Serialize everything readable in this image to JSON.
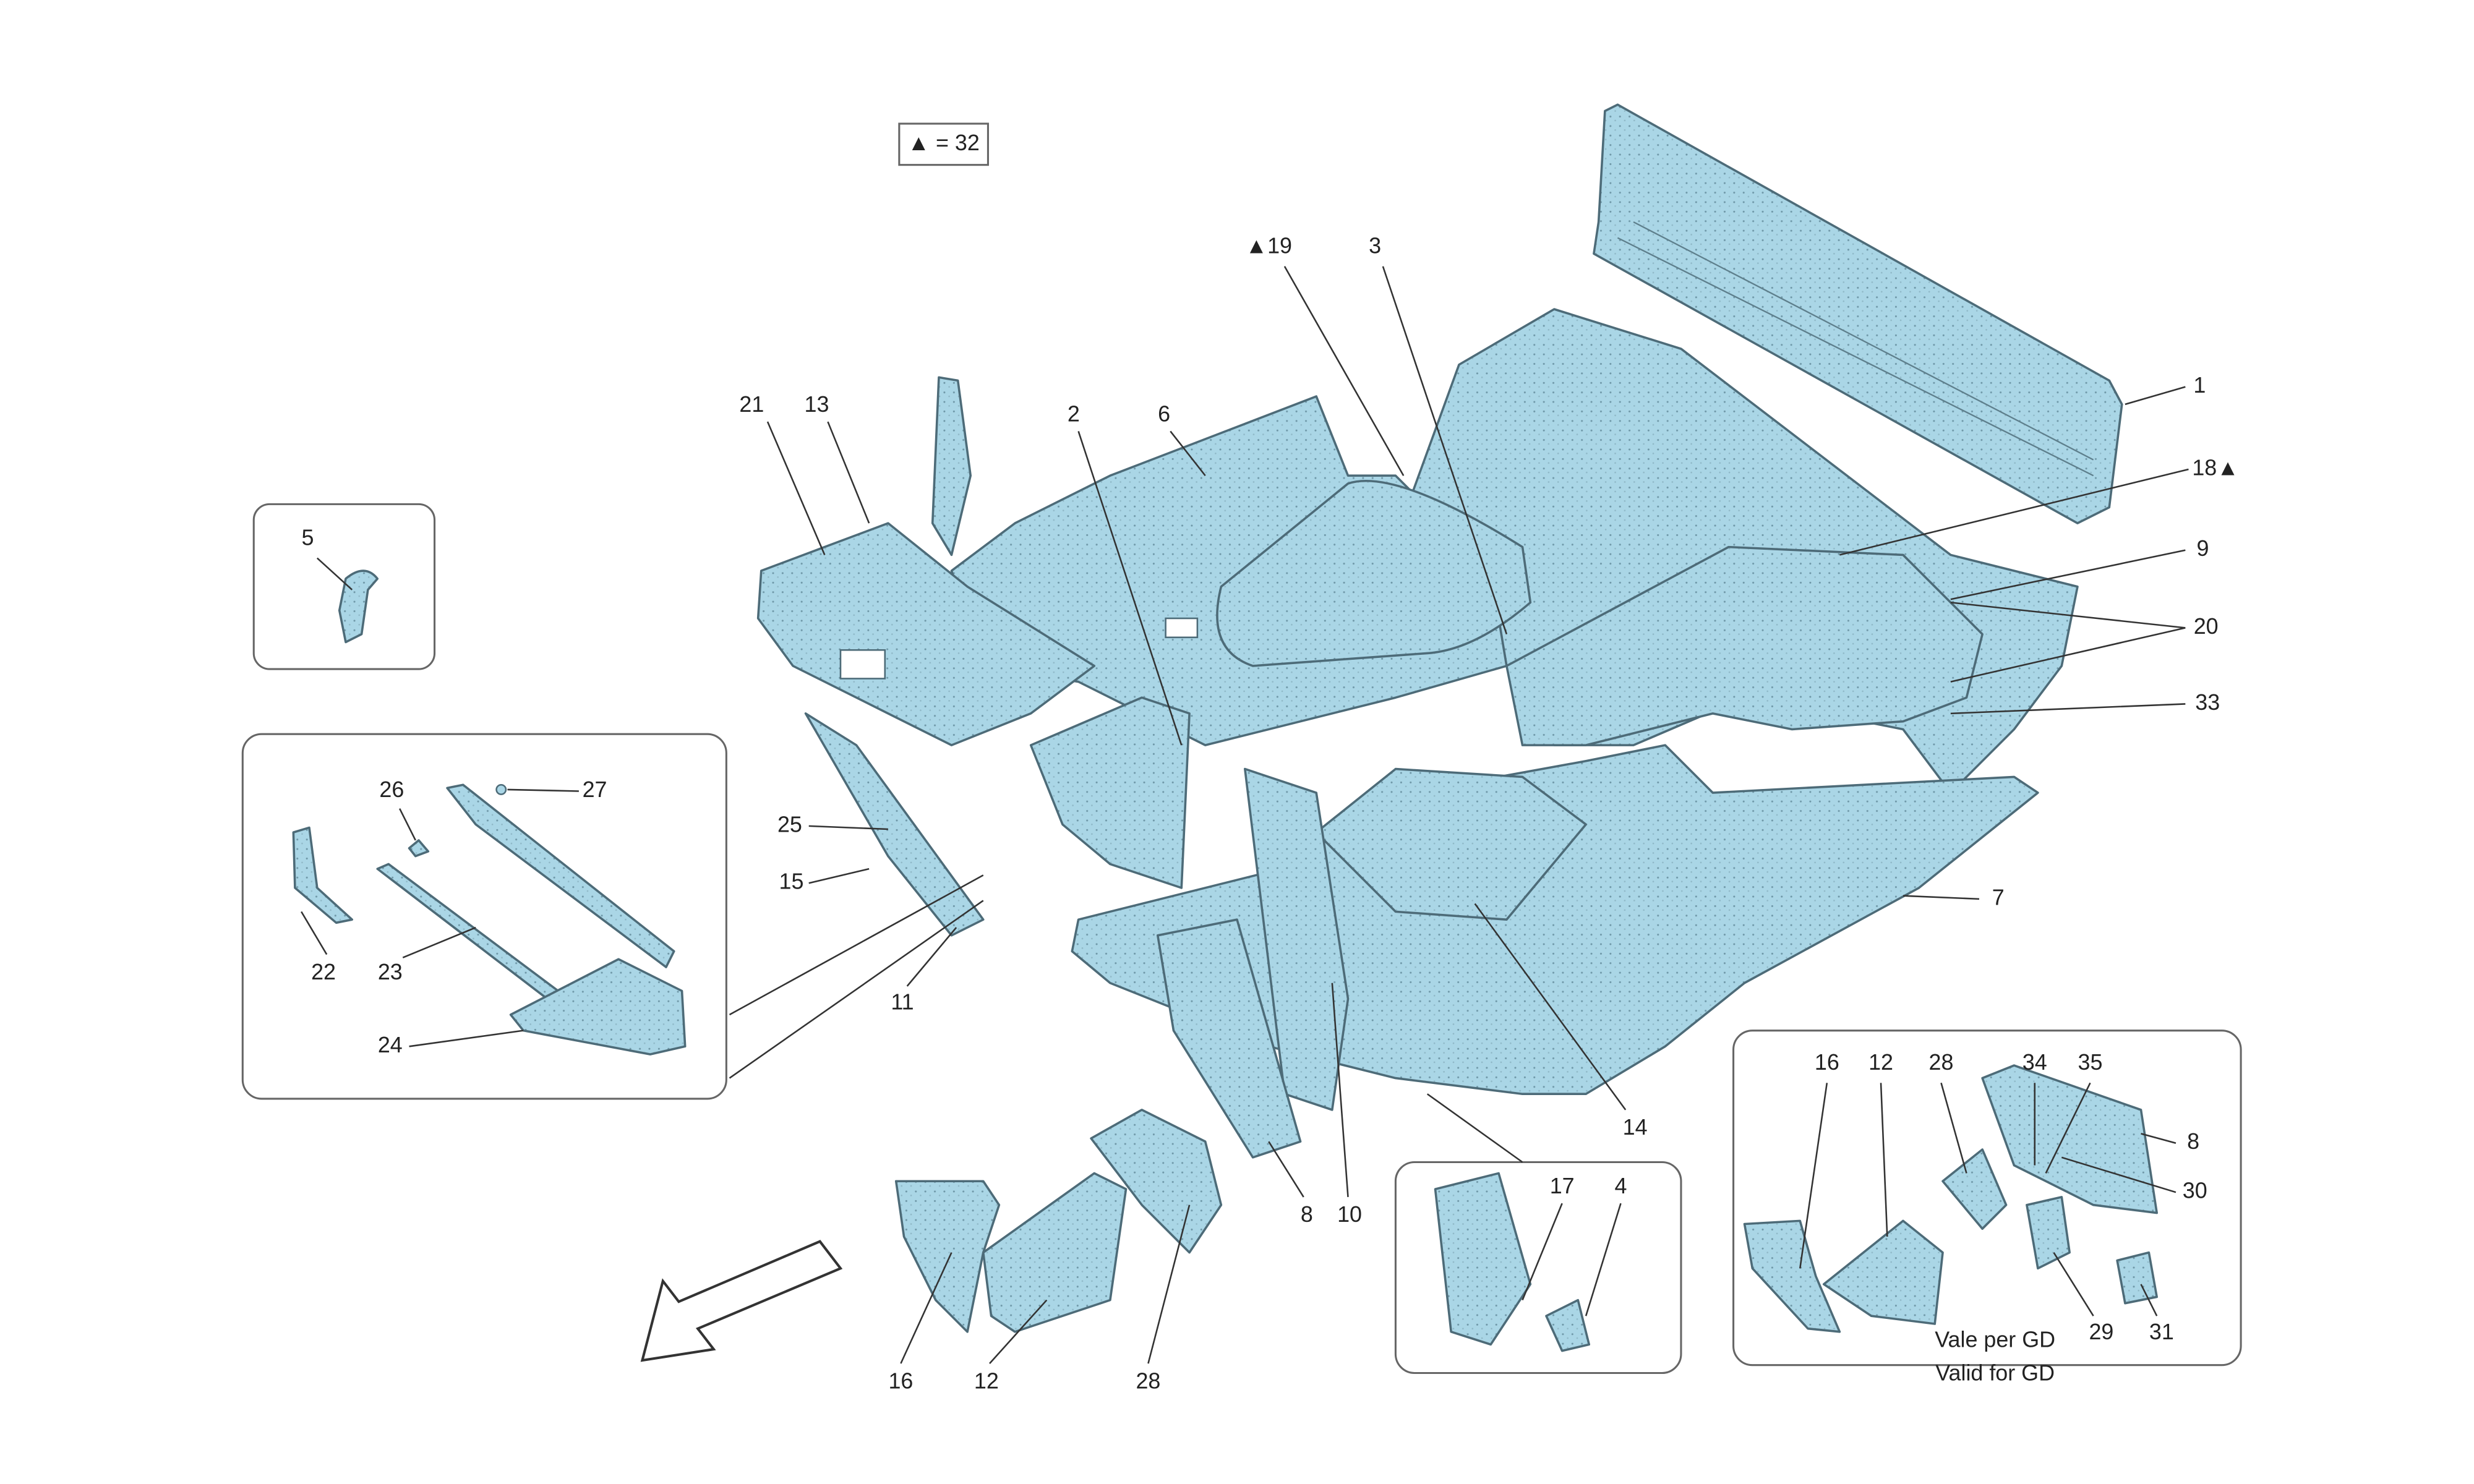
{
  "callouts": [
    "▲ = 32",
    "▲19",
    "3",
    "1",
    "18▲",
    "21",
    "13",
    "2",
    "6",
    "5",
    "9",
    "20",
    "33",
    "26",
    "27",
    "25",
    "15",
    "22",
    "23",
    "11",
    "24",
    "7",
    "16",
    "12",
    "28",
    "34",
    "35",
    "8",
    "30",
    "29",
    "31",
    "Vale per GD",
    "Valid for GD",
    "14",
    "17",
    "4",
    "8",
    "10",
    "16",
    "12",
    "28"
  ]
}
